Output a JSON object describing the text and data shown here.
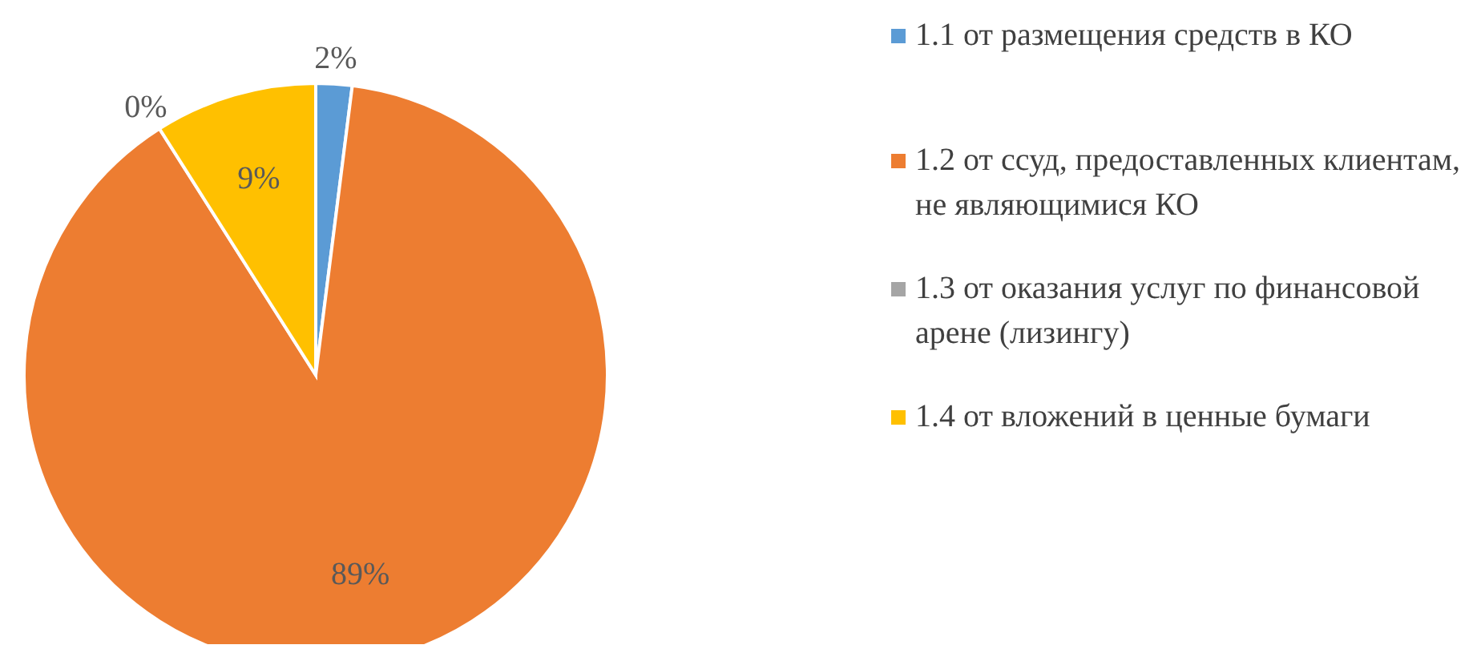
{
  "chart_data": {
    "type": "pie",
    "categories": [
      "1.1 от размещения средств в КО",
      "1.2 от ссуд, предоставленных клиентам, не являющимися КО",
      "1.3 от оказания услуг по финансовой арене (лизингу)",
      "1.4 от вложений в ценные бумаги"
    ],
    "values": [
      2,
      89,
      0,
      9
    ],
    "value_labels": [
      "2%",
      "89%",
      "0%",
      "9%"
    ],
    "colors": [
      "#5b9bd5",
      "#ed7d31",
      "#a5a5a5",
      "#ffc000"
    ],
    "legend": "right"
  }
}
